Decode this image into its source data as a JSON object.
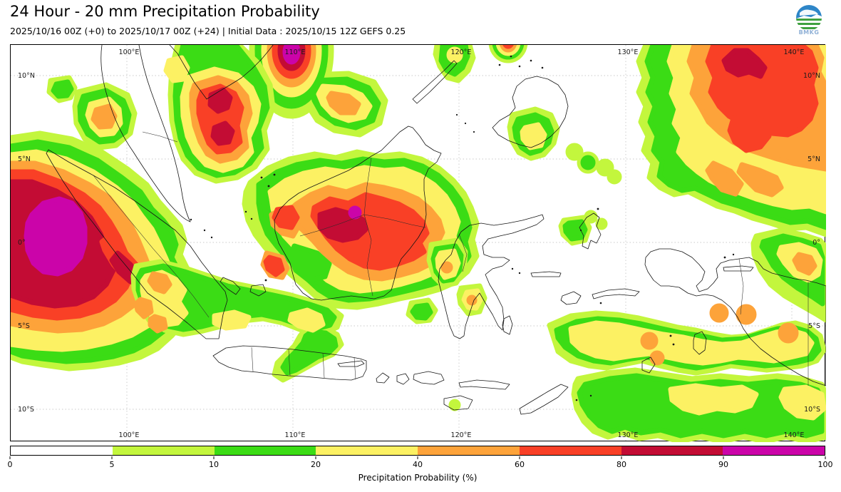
{
  "header": {
    "title": "24 Hour - 20 mm Precipitation Probability",
    "subtitle": "2025/10/16 00Z (+0) to 2025/10/17 00Z (+24) | Initial Data : 2025/10/15 12Z GEFS 0.25",
    "logo_text": "BMKG"
  },
  "map": {
    "lon_labels": [
      "100°E",
      "110°E",
      "120°E",
      "130°E",
      "140°E"
    ],
    "lat_labels": [
      "10°N",
      "5°N",
      "0°",
      "5°S",
      "10°S"
    ]
  },
  "colorbar": {
    "label": "Precipitation Probability (%)",
    "tick_labels": [
      "0",
      "5",
      "10",
      "20",
      "40",
      "60",
      "80",
      "90",
      "100"
    ],
    "segments": [
      {
        "range": "0-5",
        "color": "#ffffff"
      },
      {
        "range": "5-10",
        "color": "#c3f63d"
      },
      {
        "range": "10-20",
        "color": "#3bdc15"
      },
      {
        "range": "20-40",
        "color": "#fcf163"
      },
      {
        "range": "40-60",
        "color": "#fda33a"
      },
      {
        "range": "60-80",
        "color": "#f94026"
      },
      {
        "range": "80-90",
        "color": "#c30c34"
      },
      {
        "range": "90-100",
        "color": "#cb04a9"
      }
    ]
  },
  "chart_data": {
    "type": "heatmap",
    "title": "24 Hour - 20 mm Precipitation Probability",
    "units": "%",
    "model": "GEFS 0.25",
    "valid_period": "2025/10/16 00Z (+0) to 2025/10/17 00Z (+24)",
    "initial_data": "2025/10/15 12Z",
    "lon_range_deg_e": [
      93,
      142
    ],
    "lat_range_deg_n": [
      -12,
      11.8
    ],
    "contour_levels_percent": [
      0,
      5,
      10,
      20,
      40,
      60,
      80,
      90,
      100
    ],
    "legend_label": "Precipitation Probability (%)",
    "notable_maxima": [
      {
        "area": "Indian Ocean west of Sumatra (~94-97°E, 1°S-3°N)",
        "max_percent": "90-100"
      },
      {
        "area": "South Vietnam coast / 110°E at northern map edge",
        "max_percent": "90-100"
      },
      {
        "area": "Gulf of Thailand south of Ca Mau (~104°E, 8-10°N)",
        "max_percent": "80-90"
      },
      {
        "area": "Central Kalimantan, Borneo (~111-113°E, ~0°)",
        "max_percent": "90-100"
      },
      {
        "area": "Philippine Sea (~137-141°E, 8-12°N)",
        "max_percent": "80-90"
      },
      {
        "area": "North Papua coast and Arafura Sea (~131-142°E, 2-10°S)",
        "max_percent": "40-60"
      },
      {
        "area": "Java and most of Sulawesi / Maluku",
        "max_percent": "0-5"
      }
    ]
  }
}
